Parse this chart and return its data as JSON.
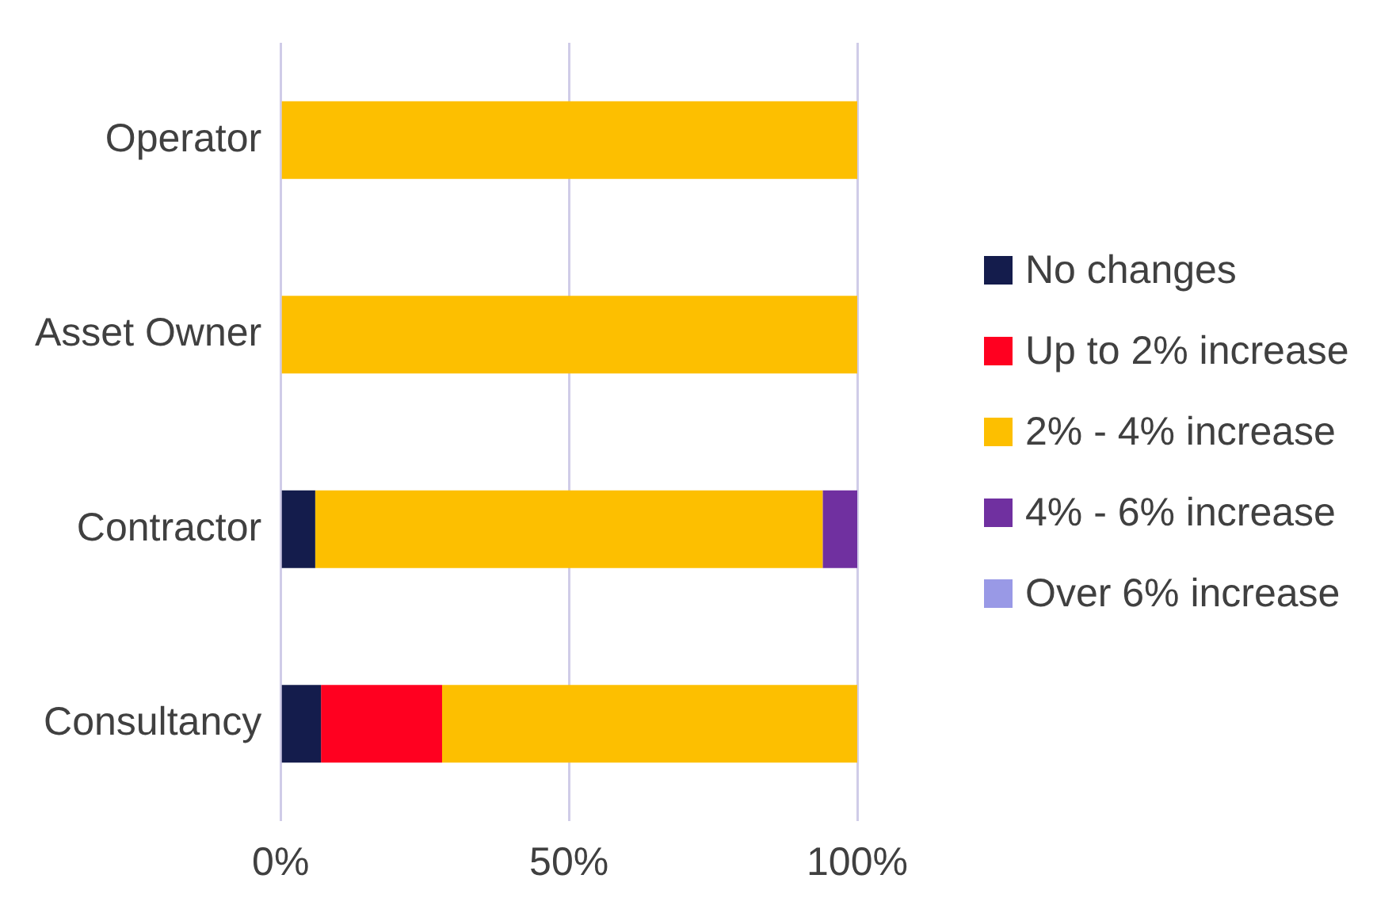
{
  "chart_data": {
    "type": "bar",
    "orientation": "horizontal",
    "stacked": true,
    "categories": [
      "Operator",
      "Asset Owner",
      "Contractor",
      "Consultancy"
    ],
    "series": [
      {
        "name": "No changes",
        "color": "#141c4c",
        "values": [
          0,
          0,
          6,
          7
        ]
      },
      {
        "name": "Up to 2% increase",
        "color": "#ff0020",
        "values": [
          0,
          0,
          0,
          21
        ]
      },
      {
        "name": "2% - 4% increase",
        "color": "#fdbf00",
        "values": [
          100,
          100,
          88,
          72
        ]
      },
      {
        "name": "4% - 6% increase",
        "color": "#7030a0",
        "values": [
          0,
          0,
          6,
          0
        ]
      },
      {
        "name": "Over 6% increase",
        "color": "#9999e6",
        "values": [
          0,
          0,
          0,
          0
        ]
      }
    ],
    "xlim": [
      0,
      100
    ],
    "xticks": [
      {
        "value": 0,
        "label": "0%"
      },
      {
        "value": 50,
        "label": "50%"
      },
      {
        "value": 100,
        "label": "100%"
      }
    ],
    "grid": "x",
    "legend": "right"
  }
}
